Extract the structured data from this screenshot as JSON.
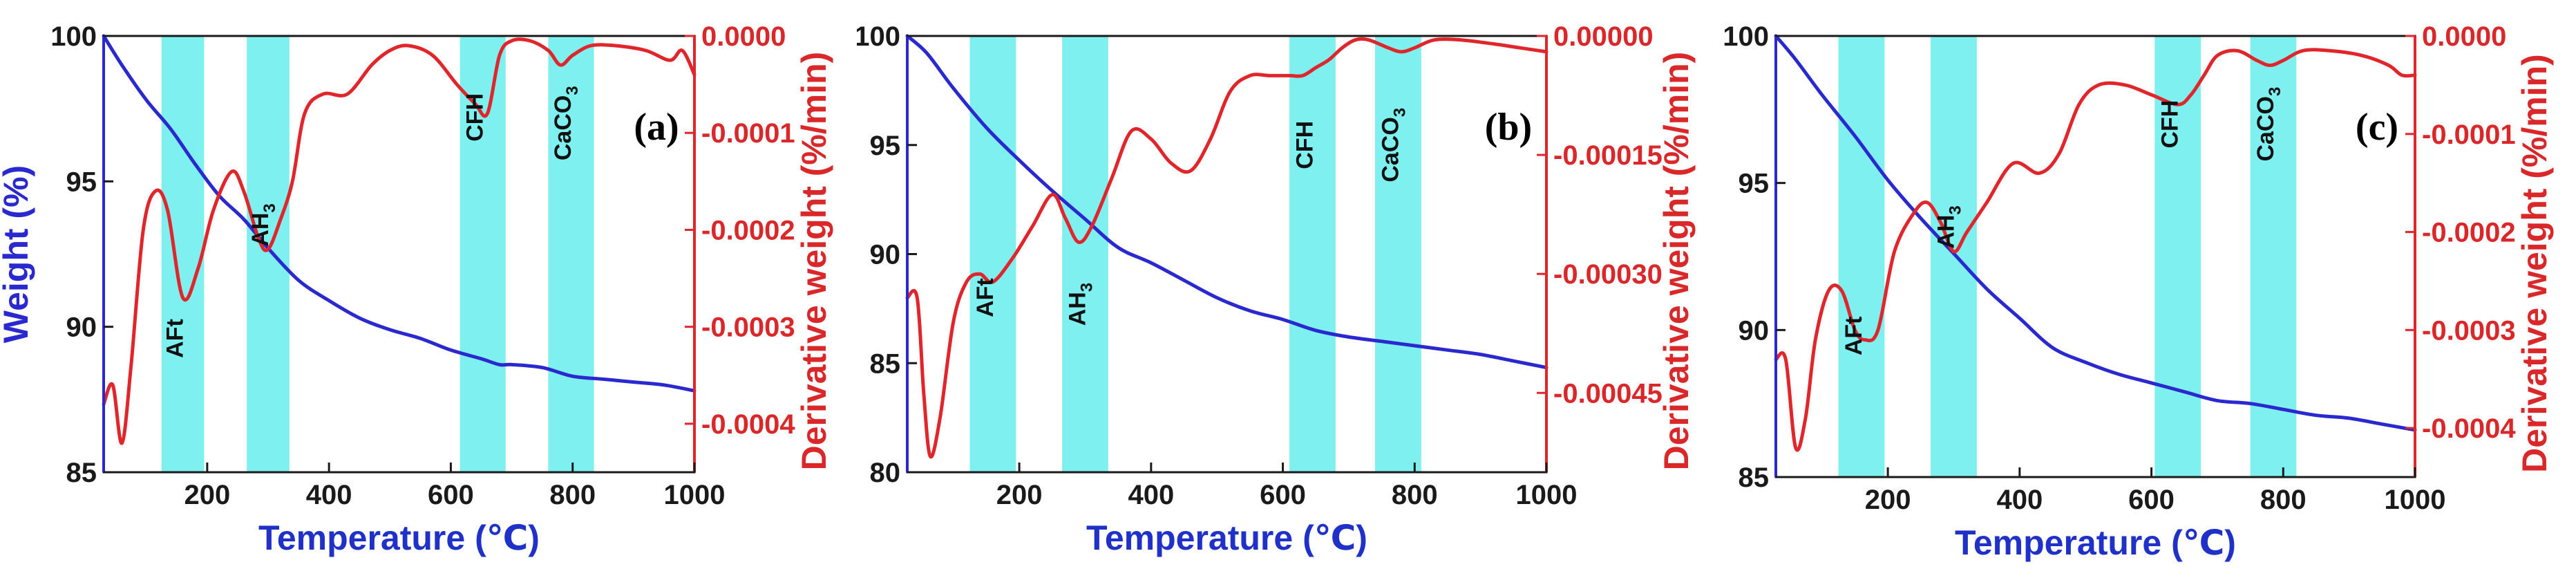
{
  "colors": {
    "weight": "#2a28cf",
    "derivative": "#e0262b",
    "band": "#7ff0f0",
    "axis": "#1a1a1a"
  },
  "chart_data": [
    {
      "type": "line",
      "panel_label": "(a)",
      "xlabel": "Temperature (℃)",
      "ylabel": "Weight (%)",
      "y2label": "Derivative weight (%/min)",
      "xlim": [
        30,
        1000
      ],
      "ylim": [
        85,
        100
      ],
      "y2lim": [
        -0.00045,
        0.0
      ],
      "x_ticks": [
        200,
        400,
        600,
        800,
        1000
      ],
      "x_tick_labels": [
        "200",
        "400",
        "600",
        "800",
        "1000"
      ],
      "y_ticks": [
        85,
        90,
        95,
        100
      ],
      "y_tick_labels": [
        "85",
        "90",
        "95",
        "100"
      ],
      "y2_ticks": [
        -0.0004,
        -0.0003,
        -0.0002,
        -0.0001,
        0.0
      ],
      "y2_tick_labels": [
        "-0.0004",
        "-0.0003",
        "-0.0002",
        "-0.0001",
        "0.0000"
      ],
      "bands": [
        {
          "label": "AFt",
          "sub": "",
          "from": 125,
          "to": 195,
          "label_x": 160,
          "label_y": 89.6,
          "rotated": true
        },
        {
          "label": "AH",
          "sub": "3",
          "from": 265,
          "to": 335,
          "label_x": 300,
          "label_y": 93.5,
          "rotated": true
        },
        {
          "label": "CFH",
          "sub": "",
          "from": 615,
          "to": 690,
          "label_x": 652,
          "label_y": 97.2,
          "rotated": true
        },
        {
          "label": "CaCO",
          "sub": "3",
          "from": 760,
          "to": 835,
          "label_x": 797,
          "label_y": 97.0,
          "rotated": true
        }
      ],
      "series": [
        {
          "name": "Weight",
          "axis": "left",
          "x": [
            30,
            60,
            100,
            140,
            180,
            220,
            260,
            300,
            350,
            400,
            450,
            500,
            550,
            600,
            650,
            680,
            700,
            750,
            800,
            850,
            900,
            950,
            1000
          ],
          "y": [
            100.0,
            99.0,
            97.8,
            96.8,
            95.6,
            94.5,
            93.7,
            92.7,
            91.6,
            90.9,
            90.3,
            89.9,
            89.6,
            89.2,
            88.9,
            88.7,
            88.7,
            88.6,
            88.3,
            88.2,
            88.1,
            88.0,
            87.8
          ]
        },
        {
          "name": "Derivative weight",
          "axis": "right",
          "x": [
            30,
            45,
            60,
            75,
            95,
            115,
            135,
            160,
            185,
            210,
            240,
            260,
            285,
            300,
            320,
            340,
            360,
            390,
            430,
            470,
            500,
            530,
            570,
            610,
            640,
            660,
            680,
            700,
            730,
            760,
            780,
            800,
            830,
            870,
            920,
            960,
            980,
            1000
          ],
          "y": [
            -0.00038,
            -0.00036,
            -0.00042,
            -0.00034,
            -0.0002,
            -0.00016,
            -0.00018,
            -0.00027,
            -0.00024,
            -0.00018,
            -0.00014,
            -0.00016,
            -0.00021,
            -0.00022,
            -0.00019,
            -0.00015,
            -8e-05,
            -6e-05,
            -6e-05,
            -3e-05,
            -1.5e-05,
            -1e-05,
            -2e-05,
            -5e-05,
            -7e-05,
            -8e-05,
            -2e-05,
            -5e-06,
            -5e-06,
            -1.5e-05,
            -3e-05,
            -2e-05,
            -1e-05,
            -1e-05,
            -1.5e-05,
            -2.5e-05,
            -1.5e-05,
            -4e-05
          ]
        }
      ]
    },
    {
      "type": "line",
      "panel_label": "(b)",
      "xlabel": "Temperature (℃)",
      "ylabel": "Weight (%)",
      "y2label": "Derivative weight (%/min)",
      "xlim": [
        30,
        1000
      ],
      "ylim": [
        80,
        100
      ],
      "y2lim": [
        -0.00055,
        0.0
      ],
      "x_ticks": [
        200,
        400,
        600,
        800,
        1000
      ],
      "x_tick_labels": [
        "200",
        "400",
        "600",
        "800",
        "1000"
      ],
      "y_ticks": [
        80,
        85,
        90,
        95,
        100
      ],
      "y_tick_labels": [
        "80",
        "85",
        "90",
        "95",
        "100"
      ],
      "y2_ticks": [
        -0.00045,
        -0.0003,
        -0.00015,
        0.0
      ],
      "y2_tick_labels": [
        "-0.00045",
        "-0.00030",
        "-0.00015",
        "0.00000"
      ],
      "bands": [
        {
          "label": "AFt",
          "sub": "",
          "from": 125,
          "to": 195,
          "label_x": 160,
          "label_y": 88.0,
          "rotated": true
        },
        {
          "label": "AH",
          "sub": "3",
          "from": 265,
          "to": 335,
          "label_x": 300,
          "label_y": 87.7,
          "rotated": true
        },
        {
          "label": "CFH",
          "sub": "",
          "from": 610,
          "to": 680,
          "label_x": 645,
          "label_y": 95.0,
          "rotated": true
        },
        {
          "label": "CaCO",
          "sub": "3",
          "from": 740,
          "to": 810,
          "label_x": 775,
          "label_y": 95.0,
          "rotated": true
        }
      ],
      "series": [
        {
          "name": "Weight",
          "axis": "left",
          "x": [
            30,
            60,
            100,
            150,
            200,
            250,
            300,
            350,
            400,
            450,
            500,
            550,
            600,
            650,
            700,
            750,
            800,
            850,
            900,
            950,
            1000
          ],
          "y": [
            100.0,
            99.2,
            97.6,
            95.8,
            94.3,
            92.9,
            91.6,
            90.3,
            89.6,
            88.8,
            88.0,
            87.4,
            87.0,
            86.5,
            86.2,
            86.0,
            85.8,
            85.6,
            85.4,
            85.1,
            84.8
          ]
        },
        {
          "name": "Derivative weight",
          "axis": "right",
          "x": [
            30,
            45,
            55,
            65,
            80,
            100,
            120,
            140,
            160,
            190,
            220,
            250,
            270,
            290,
            310,
            340,
            370,
            400,
            430,
            460,
            490,
            520,
            550,
            580,
            610,
            630,
            650,
            670,
            690,
            710,
            730,
            760,
            780,
            800,
            830,
            870,
            920,
            960,
            1000
          ],
          "y": [
            -0.00033,
            -0.00033,
            -0.00045,
            -0.00053,
            -0.00048,
            -0.00036,
            -0.00031,
            -0.0003,
            -0.00031,
            -0.00028,
            -0.00024,
            -0.0002,
            -0.00023,
            -0.00026,
            -0.00024,
            -0.00018,
            -0.00012,
            -0.00013,
            -0.00016,
            -0.00017,
            -0.00013,
            -7e-05,
            -5e-05,
            -5e-05,
            -5e-05,
            -5e-05,
            -4e-05,
            -3e-05,
            -1.5e-05,
            -5e-06,
            -5e-06,
            -1.5e-05,
            -2e-05,
            -1.5e-05,
            -5e-06,
            -5e-06,
            -1e-05,
            -1.5e-05,
            -2e-05
          ]
        }
      ]
    },
    {
      "type": "line",
      "panel_label": "(c)",
      "xlabel": "Temperature (℃)",
      "ylabel": "Weight (%)",
      "y2label": "Derivative weight (%/min)",
      "xlim": [
        30,
        1000
      ],
      "ylim": [
        85,
        100
      ],
      "y2lim": [
        -0.00045,
        0.0
      ],
      "x_ticks": [
        200,
        400,
        600,
        800,
        1000
      ],
      "x_tick_labels": [
        "200",
        "400",
        "600",
        "800",
        "1000"
      ],
      "y_ticks": [
        85,
        90,
        95,
        100
      ],
      "y_tick_labels": [
        "85",
        "90",
        "95",
        "100"
      ],
      "y2_ticks": [
        -0.0004,
        -0.0003,
        -0.0002,
        -0.0001,
        0.0
      ],
      "y2_tick_labels": [
        "-0.0004",
        "-0.0003",
        "-0.0002",
        "-0.0001",
        "0.0000"
      ],
      "bands": [
        {
          "label": "AFt",
          "sub": "",
          "from": 125,
          "to": 195,
          "label_x": 160,
          "label_y": 89.8,
          "rotated": true
        },
        {
          "label": "AH",
          "sub": "3",
          "from": 265,
          "to": 335,
          "label_x": 300,
          "label_y": 93.5,
          "rotated": true
        },
        {
          "label": "CFH",
          "sub": "",
          "from": 605,
          "to": 675,
          "label_x": 640,
          "label_y": 97.0,
          "rotated": true
        },
        {
          "label": "CaCO",
          "sub": "3",
          "from": 750,
          "to": 820,
          "label_x": 785,
          "label_y": 97.0,
          "rotated": true
        }
      ],
      "series": [
        {
          "name": "Weight",
          "axis": "left",
          "x": [
            30,
            60,
            100,
            150,
            200,
            250,
            300,
            350,
            400,
            450,
            500,
            550,
            600,
            650,
            700,
            750,
            800,
            850,
            900,
            950,
            1000
          ],
          "y": [
            100.0,
            99.2,
            98.0,
            96.6,
            95.1,
            93.8,
            92.6,
            91.4,
            90.4,
            89.4,
            88.9,
            88.5,
            88.2,
            87.9,
            87.6,
            87.5,
            87.3,
            87.1,
            87.0,
            86.8,
            86.6
          ]
        },
        {
          "name": "Derivative weight",
          "axis": "right",
          "x": [
            30,
            45,
            60,
            75,
            90,
            110,
            130,
            150,
            165,
            185,
            210,
            240,
            260,
            280,
            300,
            320,
            350,
            390,
            430,
            460,
            490,
            520,
            560,
            600,
            640,
            660,
            680,
            700,
            730,
            760,
            780,
            800,
            830,
            870,
            920,
            960,
            980,
            1000
          ],
          "y": [
            -0.00033,
            -0.00033,
            -0.00042,
            -0.00039,
            -0.00031,
            -0.00026,
            -0.00026,
            -0.0003,
            -0.00031,
            -0.0003,
            -0.00022,
            -0.00018,
            -0.00017,
            -0.00019,
            -0.00022,
            -0.0002,
            -0.00017,
            -0.00013,
            -0.00014,
            -0.00012,
            -7e-05,
            -5e-05,
            -5e-05,
            -6e-05,
            -7e-05,
            -6e-05,
            -4e-05,
            -2e-05,
            -1.5e-05,
            -2.5e-05,
            -3e-05,
            -2.5e-05,
            -1.5e-05,
            -1.5e-05,
            -2e-05,
            -3e-05,
            -4e-05,
            -4e-05
          ]
        }
      ]
    }
  ]
}
